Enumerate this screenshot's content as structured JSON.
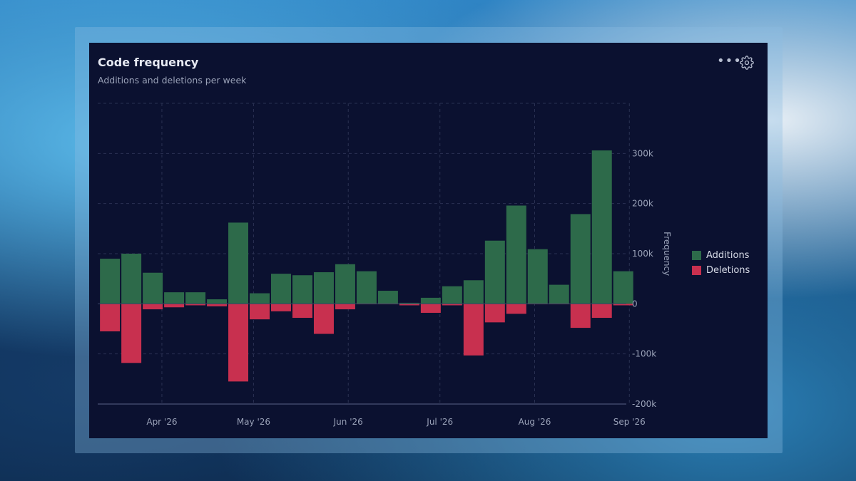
{
  "card": {
    "title": "Code frequency",
    "subtitle": "Additions and deletions per week"
  },
  "icons": {
    "more": "more-horizontal-icon",
    "settings": "gear-icon"
  },
  "colors": {
    "additions": "#2d6a4a",
    "deletions": "#c8304f",
    "card_bg": "#0b1130",
    "grid": "#2a3152",
    "text": "#9aa2b8"
  },
  "chart_data": {
    "type": "bar",
    "ylabel": "Frequency",
    "ylim": [
      -200000,
      400000
    ],
    "yticks": [
      {
        "value": 300000,
        "label": "300k"
      },
      {
        "value": 200000,
        "label": "200k"
      },
      {
        "value": 100000,
        "label": "100k"
      },
      {
        "value": 0,
        "label": "0"
      },
      {
        "value": -100000,
        "label": "-100k"
      },
      {
        "value": -200000,
        "label": "-200k"
      }
    ],
    "xticks": [
      {
        "date": "2026-04-01",
        "label": "Apr '26"
      },
      {
        "date": "2026-05-01",
        "label": "May '26"
      },
      {
        "date": "2026-06-01",
        "label": "Jun '26"
      },
      {
        "date": "2026-07-01",
        "label": "Jul '26"
      },
      {
        "date": "2026-08-01",
        "label": "Aug '26"
      },
      {
        "date": "2026-09-01",
        "label": "Sep '26"
      }
    ],
    "x_range": [
      "2026-03-11",
      "2026-08-31"
    ],
    "grid": true,
    "legend_position": "right",
    "weeks": [
      "2026-03-15",
      "2026-03-22",
      "2026-03-29",
      "2026-04-05",
      "2026-04-12",
      "2026-04-19",
      "2026-04-26",
      "2026-05-03",
      "2026-05-10",
      "2026-05-17",
      "2026-05-24",
      "2026-05-31",
      "2026-06-07",
      "2026-06-14",
      "2026-06-21",
      "2026-06-28",
      "2026-07-05",
      "2026-07-12",
      "2026-07-19",
      "2026-07-26",
      "2026-08-02",
      "2026-08-09",
      "2026-08-16",
      "2026-08-23",
      "2026-08-30"
    ],
    "series": [
      {
        "name": "Additions",
        "values": [
          90000,
          100000,
          62000,
          23000,
          23000,
          9000,
          162000,
          21000,
          60000,
          57000,
          63000,
          79000,
          65000,
          26000,
          2000,
          12000,
          35000,
          47000,
          126000,
          196000,
          109000,
          38000,
          179000,
          306000,
          65000
        ]
      },
      {
        "name": "Deletions",
        "values": [
          -55000,
          -118000,
          -11000,
          -7000,
          -3000,
          -5000,
          -155000,
          -31000,
          -15000,
          -28000,
          -60000,
          -11000,
          -1000,
          -1000,
          -3000,
          -18000,
          -3000,
          -103000,
          -37000,
          -20000,
          -1000,
          -1000,
          -48000,
          -28000,
          -3000
        ]
      }
    ]
  }
}
